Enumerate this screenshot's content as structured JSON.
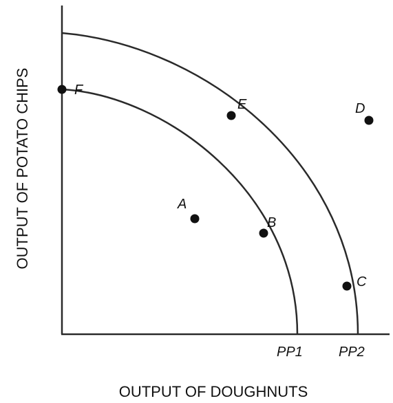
{
  "axes": {
    "x_label": "OUTPUT OF DOUGHNUTS",
    "y_label": "OUTPUT OF POTATO CHIPS"
  },
  "curves": [
    {
      "label": "PP1"
    },
    {
      "label": "PP2"
    }
  ],
  "points": [
    {
      "label": "F"
    },
    {
      "label": "E"
    },
    {
      "label": "D"
    },
    {
      "label": "A"
    },
    {
      "label": "B"
    },
    {
      "label": "C"
    }
  ]
}
